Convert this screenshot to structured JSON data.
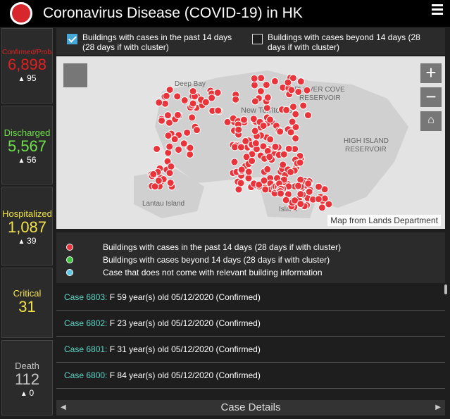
{
  "header": {
    "title": "Coronavirus Disease (COVID-19) in HK"
  },
  "stats": [
    {
      "label": "Confirmed/Probable",
      "value": "6,898",
      "delta": 95,
      "color": "#e02020"
    },
    {
      "label": "Discharged",
      "value": "5,567",
      "delta": 56,
      "color": "#6ee04a"
    },
    {
      "label": "Hospitalized",
      "value": "1,087",
      "delta": 39,
      "color": "#f2e24a"
    },
    {
      "label": "Critical",
      "value": "31",
      "color": "#f2e24a"
    },
    {
      "label": "Death",
      "value": "112",
      "delta": 0,
      "color": "#c8c8c8"
    }
  ],
  "filters": [
    {
      "label": "Buildings with cases in the past 14 days (28 days if with cluster)",
      "checked": true
    },
    {
      "label": "Buildings with cases beyond 14 days (28 days if with cluster)",
      "checked": false
    }
  ],
  "map": {
    "labels": [
      "Deep Bay",
      "New Territories",
      "PLOVER COVE",
      "RESERVOIR",
      "HIGH ISLAND",
      "RESERVOIR",
      "Lantau Island",
      "Island"
    ],
    "credit": "Map from Lands Department"
  },
  "legend": [
    {
      "label": "Buildings with cases in the past 14 days (28 days if with cluster)",
      "color": "#e8343a"
    },
    {
      "label": "Buildings with cases beyond 14 days (28 days if with cluster)",
      "color": "#3cc43c"
    },
    {
      "label": "Case that does not come with relevant building information",
      "color": "#5bc8e8"
    }
  ],
  "cases": [
    {
      "case": "Case 6803:",
      "details": "F  59 year(s) old  05/12/2020 (Confirmed)"
    },
    {
      "case": "Case 6802:",
      "details": "F  23 year(s) old  05/12/2020 (Confirmed)"
    },
    {
      "case": "Case 6801:",
      "details": "F  31 year(s) old  05/12/2020 (Confirmed)"
    },
    {
      "case": "Case 6800:",
      "details": "F  84 year(s) old  05/12/2020 (Confirmed)"
    }
  ],
  "footer": {
    "title": "Case Details"
  }
}
